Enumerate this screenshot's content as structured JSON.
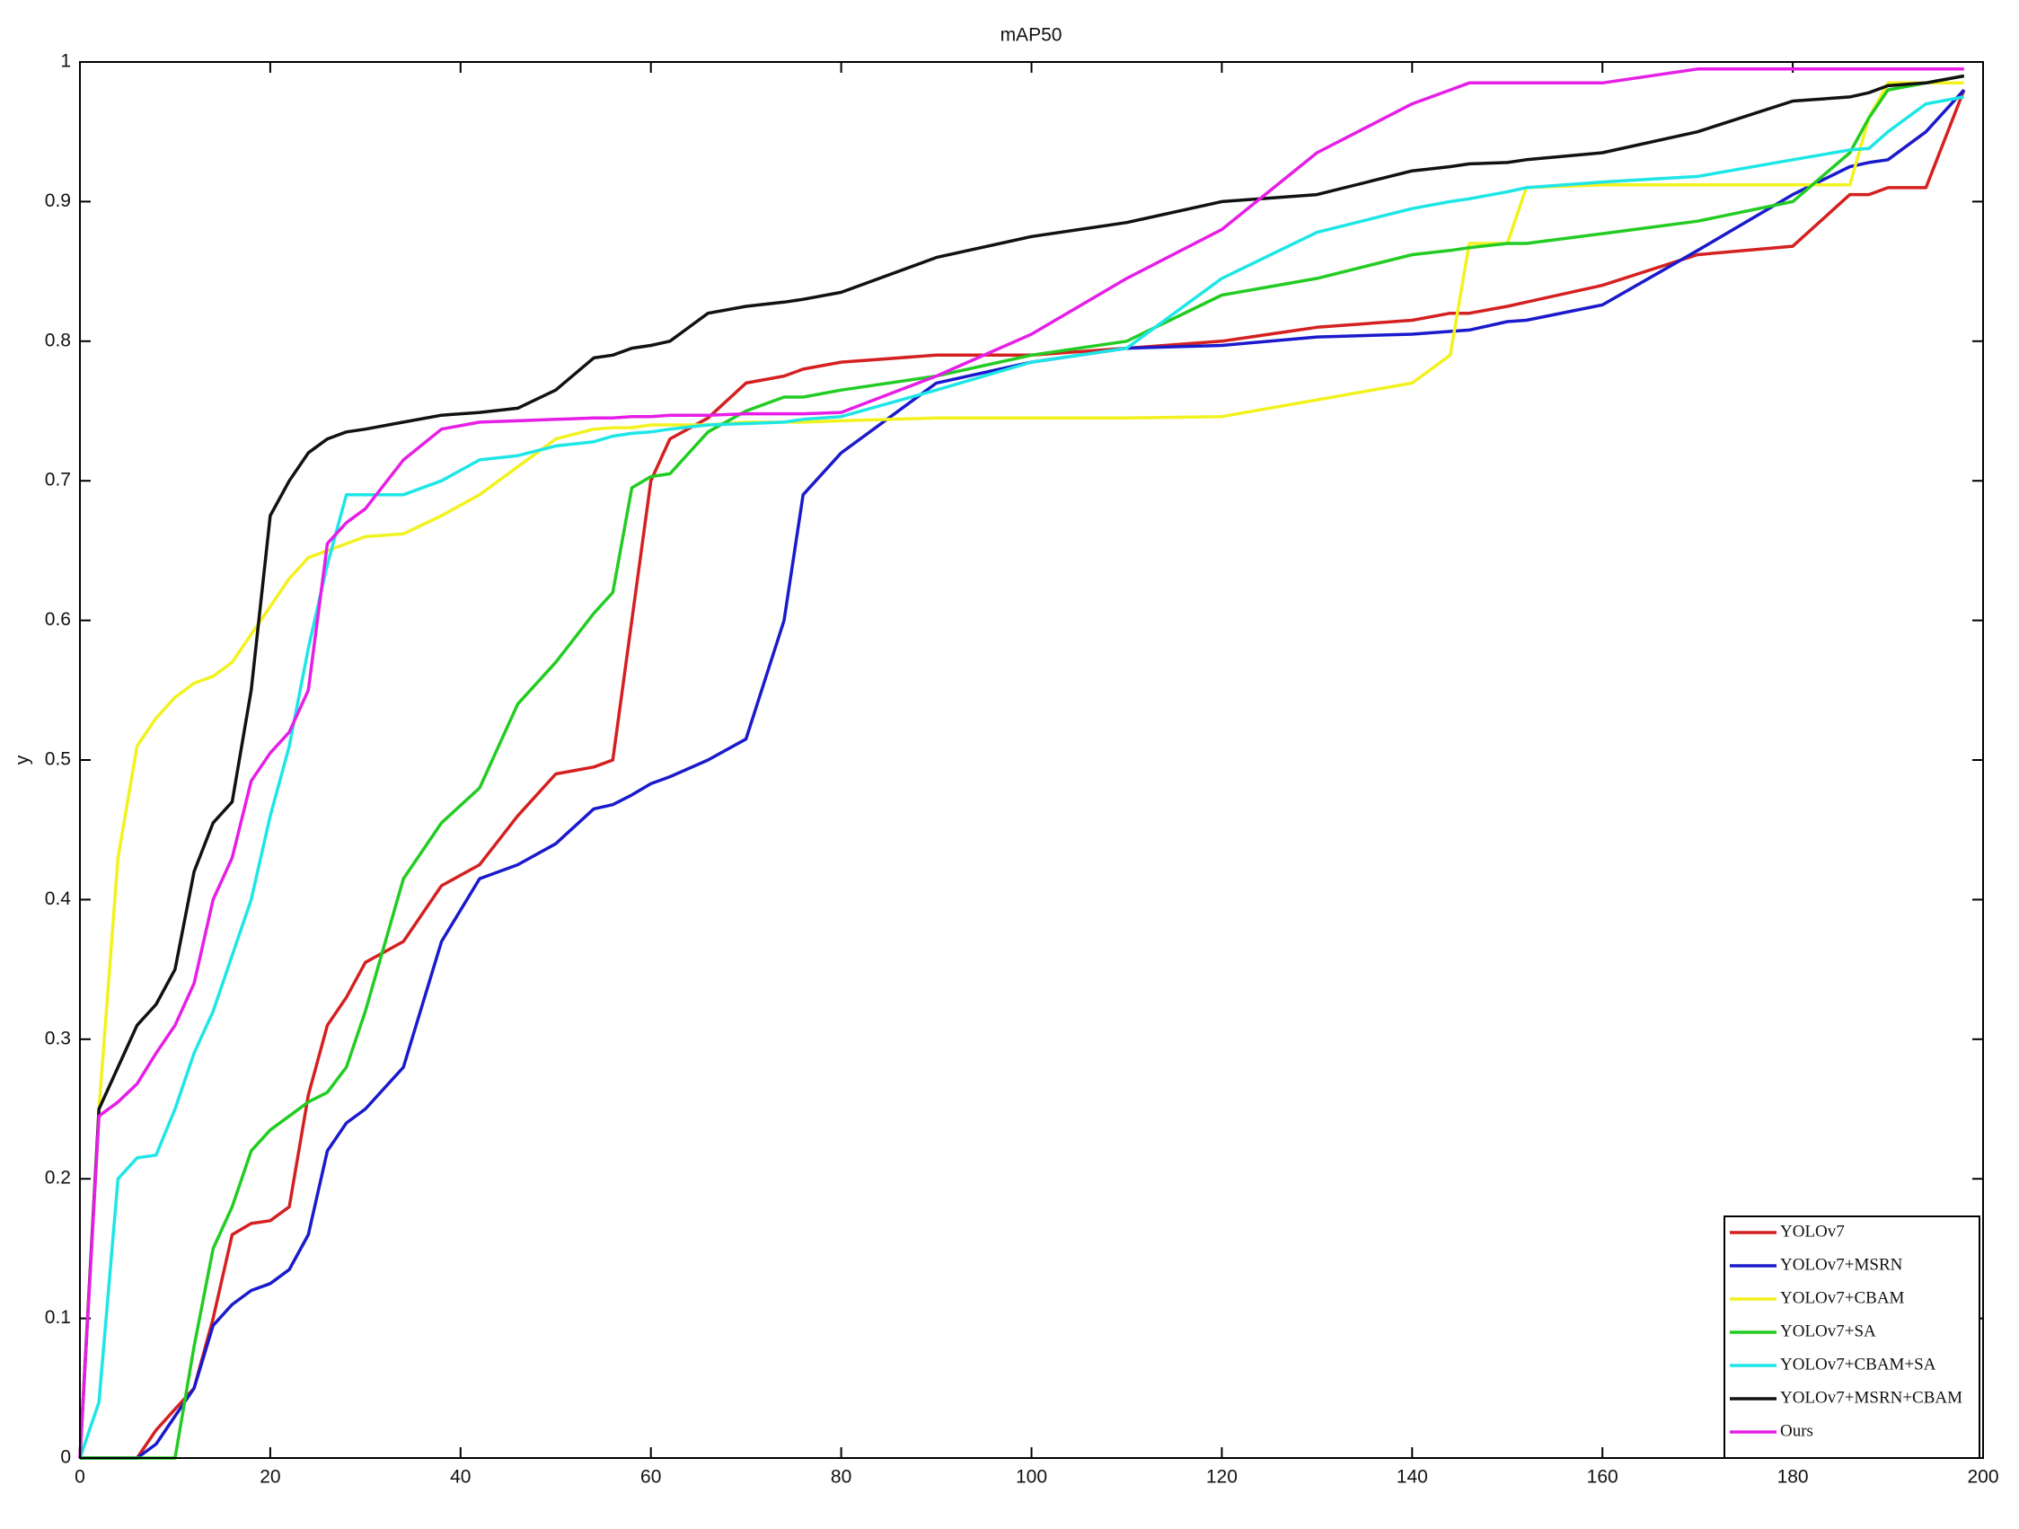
{
  "chart_data": {
    "type": "line",
    "title": "mAP50",
    "ylabel": "y",
    "xlim": [
      0,
      200
    ],
    "ylim": [
      0,
      1
    ],
    "xticks": [
      0,
      20,
      40,
      60,
      80,
      100,
      120,
      140,
      160,
      180,
      200
    ],
    "yticks": [
      0,
      0.1,
      0.2,
      0.3,
      0.4,
      0.5,
      0.6,
      0.7,
      0.8,
      0.9,
      1
    ],
    "grid": false,
    "legend": "lower right",
    "x": [
      0,
      2,
      4,
      6,
      8,
      10,
      12,
      14,
      16,
      18,
      20,
      22,
      24,
      26,
      28,
      30,
      34,
      38,
      42,
      46,
      50,
      54,
      56,
      58,
      60,
      62,
      66,
      70,
      74,
      76,
      80,
      90,
      100,
      110,
      120,
      130,
      140,
      144,
      146,
      150,
      152,
      160,
      170,
      180,
      186,
      188,
      190,
      194,
      198
    ],
    "series": [
      {
        "name": "YOLOv7",
        "color": "#d42020",
        "values": [
          0,
          0,
          0,
          0,
          0.02,
          0.035,
          0.05,
          0.1,
          0.16,
          0.168,
          0.17,
          0.18,
          0.26,
          0.31,
          0.33,
          0.355,
          0.37,
          0.41,
          0.425,
          0.46,
          0.49,
          0.495,
          0.5,
          0.6,
          0.7,
          0.73,
          0.745,
          0.77,
          0.775,
          0.78,
          0.785,
          0.79,
          0.79,
          0.795,
          0.8,
          0.81,
          0.815,
          0.82,
          0.82,
          0.825,
          0.828,
          0.84,
          0.862,
          0.868,
          0.905,
          0.905,
          0.91,
          0.91,
          0.98
        ]
      },
      {
        "name": "YOLOv7+MSRN",
        "color": "#1a1acc",
        "values": [
          0,
          0,
          0,
          0,
          0.01,
          0.03,
          0.05,
          0.095,
          0.11,
          0.12,
          0.125,
          0.135,
          0.16,
          0.22,
          0.24,
          0.25,
          0.28,
          0.37,
          0.415,
          0.425,
          0.44,
          0.465,
          0.468,
          0.475,
          0.483,
          0.488,
          0.5,
          0.515,
          0.6,
          0.69,
          0.72,
          0.77,
          0.785,
          0.795,
          0.797,
          0.803,
          0.805,
          0.807,
          0.808,
          0.814,
          0.815,
          0.826,
          0.865,
          0.905,
          0.925,
          0.928,
          0.93,
          0.95,
          0.98
        ]
      },
      {
        "name": "YOLOv7+CBAM",
        "color": "#f2f21e",
        "values": [
          0,
          0.25,
          0.43,
          0.51,
          0.53,
          0.545,
          0.555,
          0.56,
          0.57,
          0.59,
          0.61,
          0.63,
          0.645,
          0.65,
          0.655,
          0.66,
          0.662,
          0.675,
          0.69,
          0.71,
          0.73,
          0.737,
          0.738,
          0.738,
          0.74,
          0.74,
          0.74,
          0.742,
          0.742,
          0.742,
          0.743,
          0.745,
          0.745,
          0.745,
          0.746,
          0.758,
          0.77,
          0.79,
          0.87,
          0.87,
          0.91,
          0.912,
          0.912,
          0.912,
          0.912,
          0.96,
          0.985,
          0.985,
          0.985
        ]
      },
      {
        "name": "YOLOv7+SA",
        "color": "#22cc22",
        "values": [
          0,
          0,
          0,
          0,
          0,
          0,
          0.08,
          0.15,
          0.18,
          0.22,
          0.235,
          0.245,
          0.255,
          0.262,
          0.28,
          0.32,
          0.415,
          0.455,
          0.48,
          0.54,
          0.57,
          0.605,
          0.62,
          0.695,
          0.703,
          0.705,
          0.735,
          0.75,
          0.76,
          0.76,
          0.765,
          0.775,
          0.79,
          0.8,
          0.833,
          0.845,
          0.862,
          0.865,
          0.867,
          0.87,
          0.87,
          0.877,
          0.886,
          0.9,
          0.935,
          0.96,
          0.98,
          0.985,
          0.99
        ]
      },
      {
        "name": "YOLOv7+CBAM+SA",
        "color": "#1ee6e6",
        "values": [
          0,
          0.04,
          0.2,
          0.215,
          0.217,
          0.25,
          0.29,
          0.32,
          0.36,
          0.4,
          0.46,
          0.51,
          0.58,
          0.64,
          0.69,
          0.69,
          0.69,
          0.7,
          0.715,
          0.718,
          0.725,
          0.728,
          0.732,
          0.734,
          0.735,
          0.737,
          0.74,
          0.741,
          0.742,
          0.744,
          0.746,
          0.765,
          0.785,
          0.795,
          0.845,
          0.878,
          0.895,
          0.9,
          0.902,
          0.907,
          0.91,
          0.914,
          0.918,
          0.93,
          0.937,
          0.938,
          0.95,
          0.97,
          0.975
        ]
      },
      {
        "name": "YOLOv7+MSRN+CBAM",
        "color": "#111111",
        "values": [
          0,
          0.25,
          0.28,
          0.31,
          0.325,
          0.35,
          0.42,
          0.455,
          0.47,
          0.55,
          0.675,
          0.7,
          0.72,
          0.73,
          0.735,
          0.737,
          0.742,
          0.747,
          0.749,
          0.752,
          0.765,
          0.788,
          0.79,
          0.795,
          0.797,
          0.8,
          0.82,
          0.825,
          0.828,
          0.83,
          0.835,
          0.86,
          0.875,
          0.885,
          0.9,
          0.905,
          0.922,
          0.925,
          0.927,
          0.928,
          0.93,
          0.935,
          0.95,
          0.972,
          0.975,
          0.978,
          0.983,
          0.985,
          0.99
        ]
      },
      {
        "name": "Ours",
        "color": "#e61ee6",
        "values": [
          0,
          0.245,
          0.255,
          0.268,
          0.29,
          0.31,
          0.34,
          0.4,
          0.43,
          0.485,
          0.505,
          0.52,
          0.55,
          0.655,
          0.67,
          0.68,
          0.715,
          0.737,
          0.742,
          0.743,
          0.744,
          0.745,
          0.745,
          0.746,
          0.746,
          0.747,
          0.747,
          0.748,
          0.748,
          0.748,
          0.749,
          0.775,
          0.805,
          0.845,
          0.88,
          0.935,
          0.97,
          0.98,
          0.985,
          0.985,
          0.985,
          0.985,
          0.995,
          0.995,
          0.995,
          0.995,
          0.995,
          0.995,
          0.995
        ]
      }
    ]
  }
}
